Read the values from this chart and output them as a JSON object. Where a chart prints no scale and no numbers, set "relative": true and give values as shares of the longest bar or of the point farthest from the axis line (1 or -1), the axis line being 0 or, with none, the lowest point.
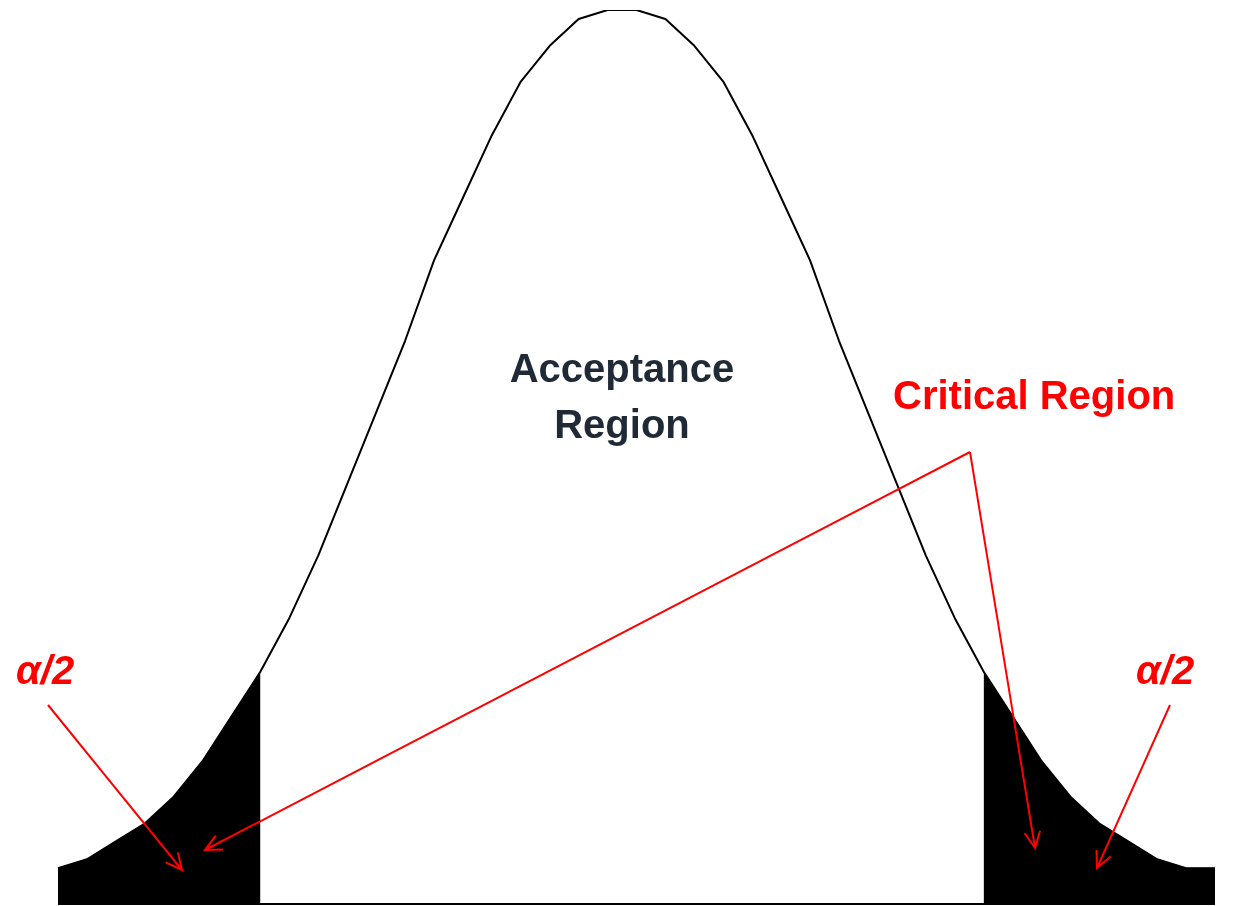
{
  "chart_data": {
    "type": "area",
    "relative": true,
    "tick_labels": false,
    "categories": [
      null,
      null,
      null,
      null,
      null,
      null,
      null,
      null,
      null,
      null,
      null,
      null,
      null,
      null,
      null,
      null,
      null,
      null,
      null,
      null,
      null,
      null,
      null,
      null,
      null,
      null,
      null,
      null,
      null,
      null,
      null,
      null,
      null,
      null,
      null,
      null,
      null,
      null,
      null,
      null,
      null
    ],
    "series": [
      {
        "type": "line",
        "color": "#000000",
        "values": [
          0.04,
          0.05,
          0.07,
          0.09,
          0.12,
          0.16,
          0.21,
          0.26,
          0.32,
          0.39,
          0.47,
          0.55,
          0.63,
          0.72,
          0.79,
          0.86,
          0.92,
          0.96,
          0.99,
          1.0,
          1.0,
          0.99,
          0.96,
          0.92,
          0.86,
          0.79,
          0.72,
          0.63,
          0.55,
          0.47,
          0.39,
          0.32,
          0.26,
          0.21,
          0.16,
          0.12,
          0.09,
          0.07,
          0.05,
          0.04,
          0.04
        ]
      },
      {
        "color": "#000000",
        "values": [
          0.04,
          0.05,
          0.07,
          0.09,
          0.12,
          0.16,
          0.21,
          0.26,
          null,
          null,
          null,
          null,
          null,
          null,
          null,
          null,
          null,
          null,
          null,
          null,
          null,
          null,
          null,
          null,
          null,
          null,
          null,
          null,
          null,
          null,
          null,
          null,
          0.26,
          0.21,
          0.16,
          0.12,
          0.09,
          0.07,
          0.05,
          0.04,
          0.04
        ]
      }
    ],
    "annotations": [
      "Acceptance Region",
      "Critical Region",
      "α/2",
      "α/2"
    ]
  }
}
